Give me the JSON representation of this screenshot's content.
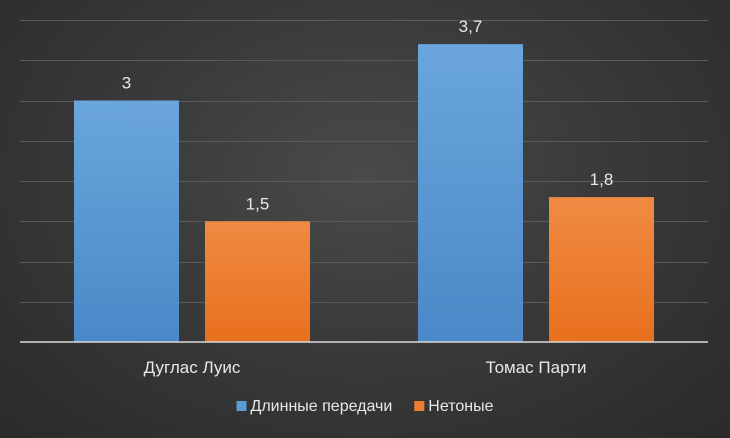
{
  "chart_data": {
    "type": "bar",
    "categories": [
      "Дуглас Луис",
      "Томас Парти"
    ],
    "series": [
      {
        "name": "Длинные передачи",
        "values": [
          3,
          3.7
        ],
        "labels": [
          "3",
          "3,7"
        ],
        "color": "#5b9bd5"
      },
      {
        "name": "Нетоные",
        "values": [
          1.5,
          1.8
        ],
        "labels": [
          "1,5",
          "1,8"
        ],
        "color": "#ed7d31"
      }
    ],
    "ylim": [
      0,
      4
    ],
    "grid": true,
    "legend": "bottom",
    "title": "",
    "xlabel": "",
    "ylabel": ""
  }
}
